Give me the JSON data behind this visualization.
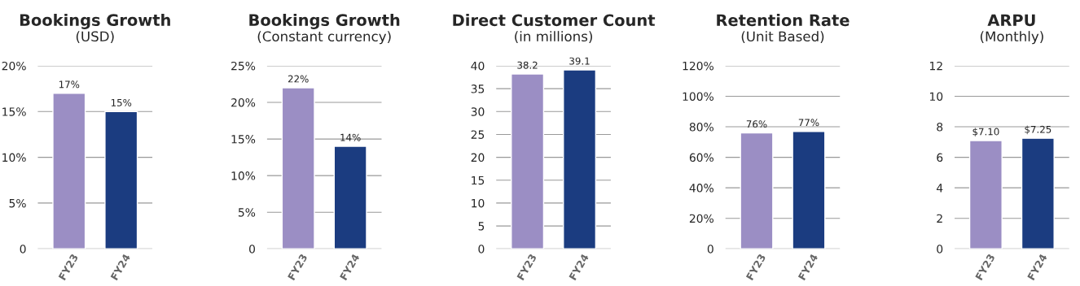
{
  "chart_data": [
    {
      "type": "bar",
      "title": "Bookings Growth",
      "subtitle": "(USD)",
      "categories": [
        "FY23",
        "FY24"
      ],
      "values": [
        17,
        15
      ],
      "colors": [
        "#9b8ec4",
        "#1b3c80"
      ],
      "value_labels": [
        "17%",
        "15%"
      ],
      "ylim": [
        0,
        20
      ],
      "yticks": [
        0,
        {
          "value": 5,
          "label": "5%"
        },
        {
          "value": 10,
          "label": "10%"
        },
        {
          "value": 15,
          "label": "15%"
        },
        {
          "value": 20,
          "label": "20%"
        }
      ],
      "grid": "y",
      "legend": false
    },
    {
      "type": "bar",
      "title": "Bookings Growth",
      "subtitle": "(Constant currency)",
      "categories": [
        "FY23",
        "FY24"
      ],
      "values": [
        22,
        14
      ],
      "colors": [
        "#9b8ec4",
        "#1b3c80"
      ],
      "value_labels": [
        "22%",
        "14%"
      ],
      "ylim": [
        0,
        25
      ],
      "yticks": [
        0,
        {
          "value": 5,
          "label": "5%"
        },
        {
          "value": 10,
          "label": "10%"
        },
        {
          "value": 15,
          "label": "15%"
        },
        {
          "value": 20,
          "label": "20%"
        },
        {
          "value": 25,
          "label": "25%"
        }
      ],
      "grid": "y",
      "legend": false
    },
    {
      "type": "bar",
      "title": "Direct Customer Count",
      "subtitle": "(in millions)",
      "categories": [
        "FY23",
        "FY24"
      ],
      "values": [
        38.2,
        39.1
      ],
      "colors": [
        "#9b8ec4",
        "#1b3c80"
      ],
      "value_labels": [
        "38.2",
        "39.1"
      ],
      "ylim": [
        0,
        40
      ],
      "yticks": [
        0,
        5,
        10,
        15,
        20,
        25,
        30,
        35,
        40
      ],
      "grid": "y",
      "legend": false
    },
    {
      "type": "bar",
      "title": "Retention Rate",
      "subtitle": "(Unit Based)",
      "categories": [
        "FY23",
        "FY24"
      ],
      "values": [
        76,
        77
      ],
      "colors": [
        "#9b8ec4",
        "#1b3c80"
      ],
      "value_labels": [
        "76%",
        "77%"
      ],
      "ylim": [
        0,
        120
      ],
      "yticks": [
        0,
        {
          "value": 20,
          "label": "20%"
        },
        {
          "value": 40,
          "label": "40%"
        },
        {
          "value": 60,
          "label": "60%"
        },
        {
          "value": 80,
          "label": "80%"
        },
        {
          "value": 100,
          "label": "100%"
        },
        {
          "value": 120,
          "label": "120%"
        }
      ],
      "grid": "y",
      "legend": false
    },
    {
      "type": "bar",
      "title": "ARPU",
      "subtitle": "(Monthly)",
      "categories": [
        "FY23",
        "FY24"
      ],
      "values": [
        7.1,
        7.25
      ],
      "colors": [
        "#9b8ec4",
        "#1b3c80"
      ],
      "value_labels": [
        "$7.10",
        "$7.25"
      ],
      "ylim": [
        0,
        12
      ],
      "yticks": [
        0,
        2,
        4,
        6,
        8,
        10,
        12
      ],
      "grid": "y",
      "legend": false
    }
  ]
}
